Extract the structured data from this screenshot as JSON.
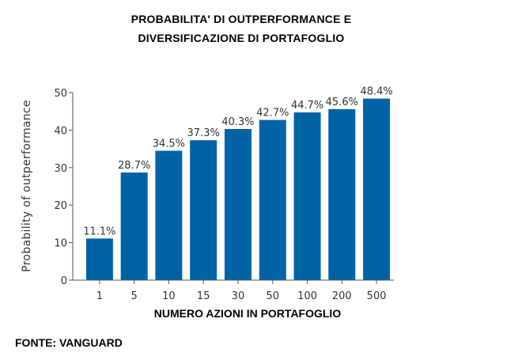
{
  "chart_data": {
    "type": "bar",
    "title": [
      "PROBABILITA' DI OUTPERFORMANCE E",
      "DIVERSIFICAZIONE DI PORTAFOGLIO"
    ],
    "categories": [
      "1",
      "5",
      "10",
      "15",
      "30",
      "50",
      "100",
      "200",
      "500"
    ],
    "values": [
      11.1,
      28.7,
      34.5,
      37.3,
      40.3,
      42.7,
      44.7,
      45.6,
      48.4
    ],
    "data_labels": [
      "11.1%",
      "28.7%",
      "34.5%",
      "37.3%",
      "40.3%",
      "42.7%",
      "44.7%",
      "45.6%",
      "48.4%"
    ],
    "xlabel": "NUMERO AZIONI IN PORTAFOGLIO",
    "ylabel": "Probability of outperformance",
    "ylim": [
      0,
      50
    ],
    "yticks": [
      "0",
      "10",
      "20",
      "30",
      "40",
      "50"
    ],
    "grid": false,
    "bar_color": "#0063a6"
  },
  "source": "FONTE: VANGUARD"
}
